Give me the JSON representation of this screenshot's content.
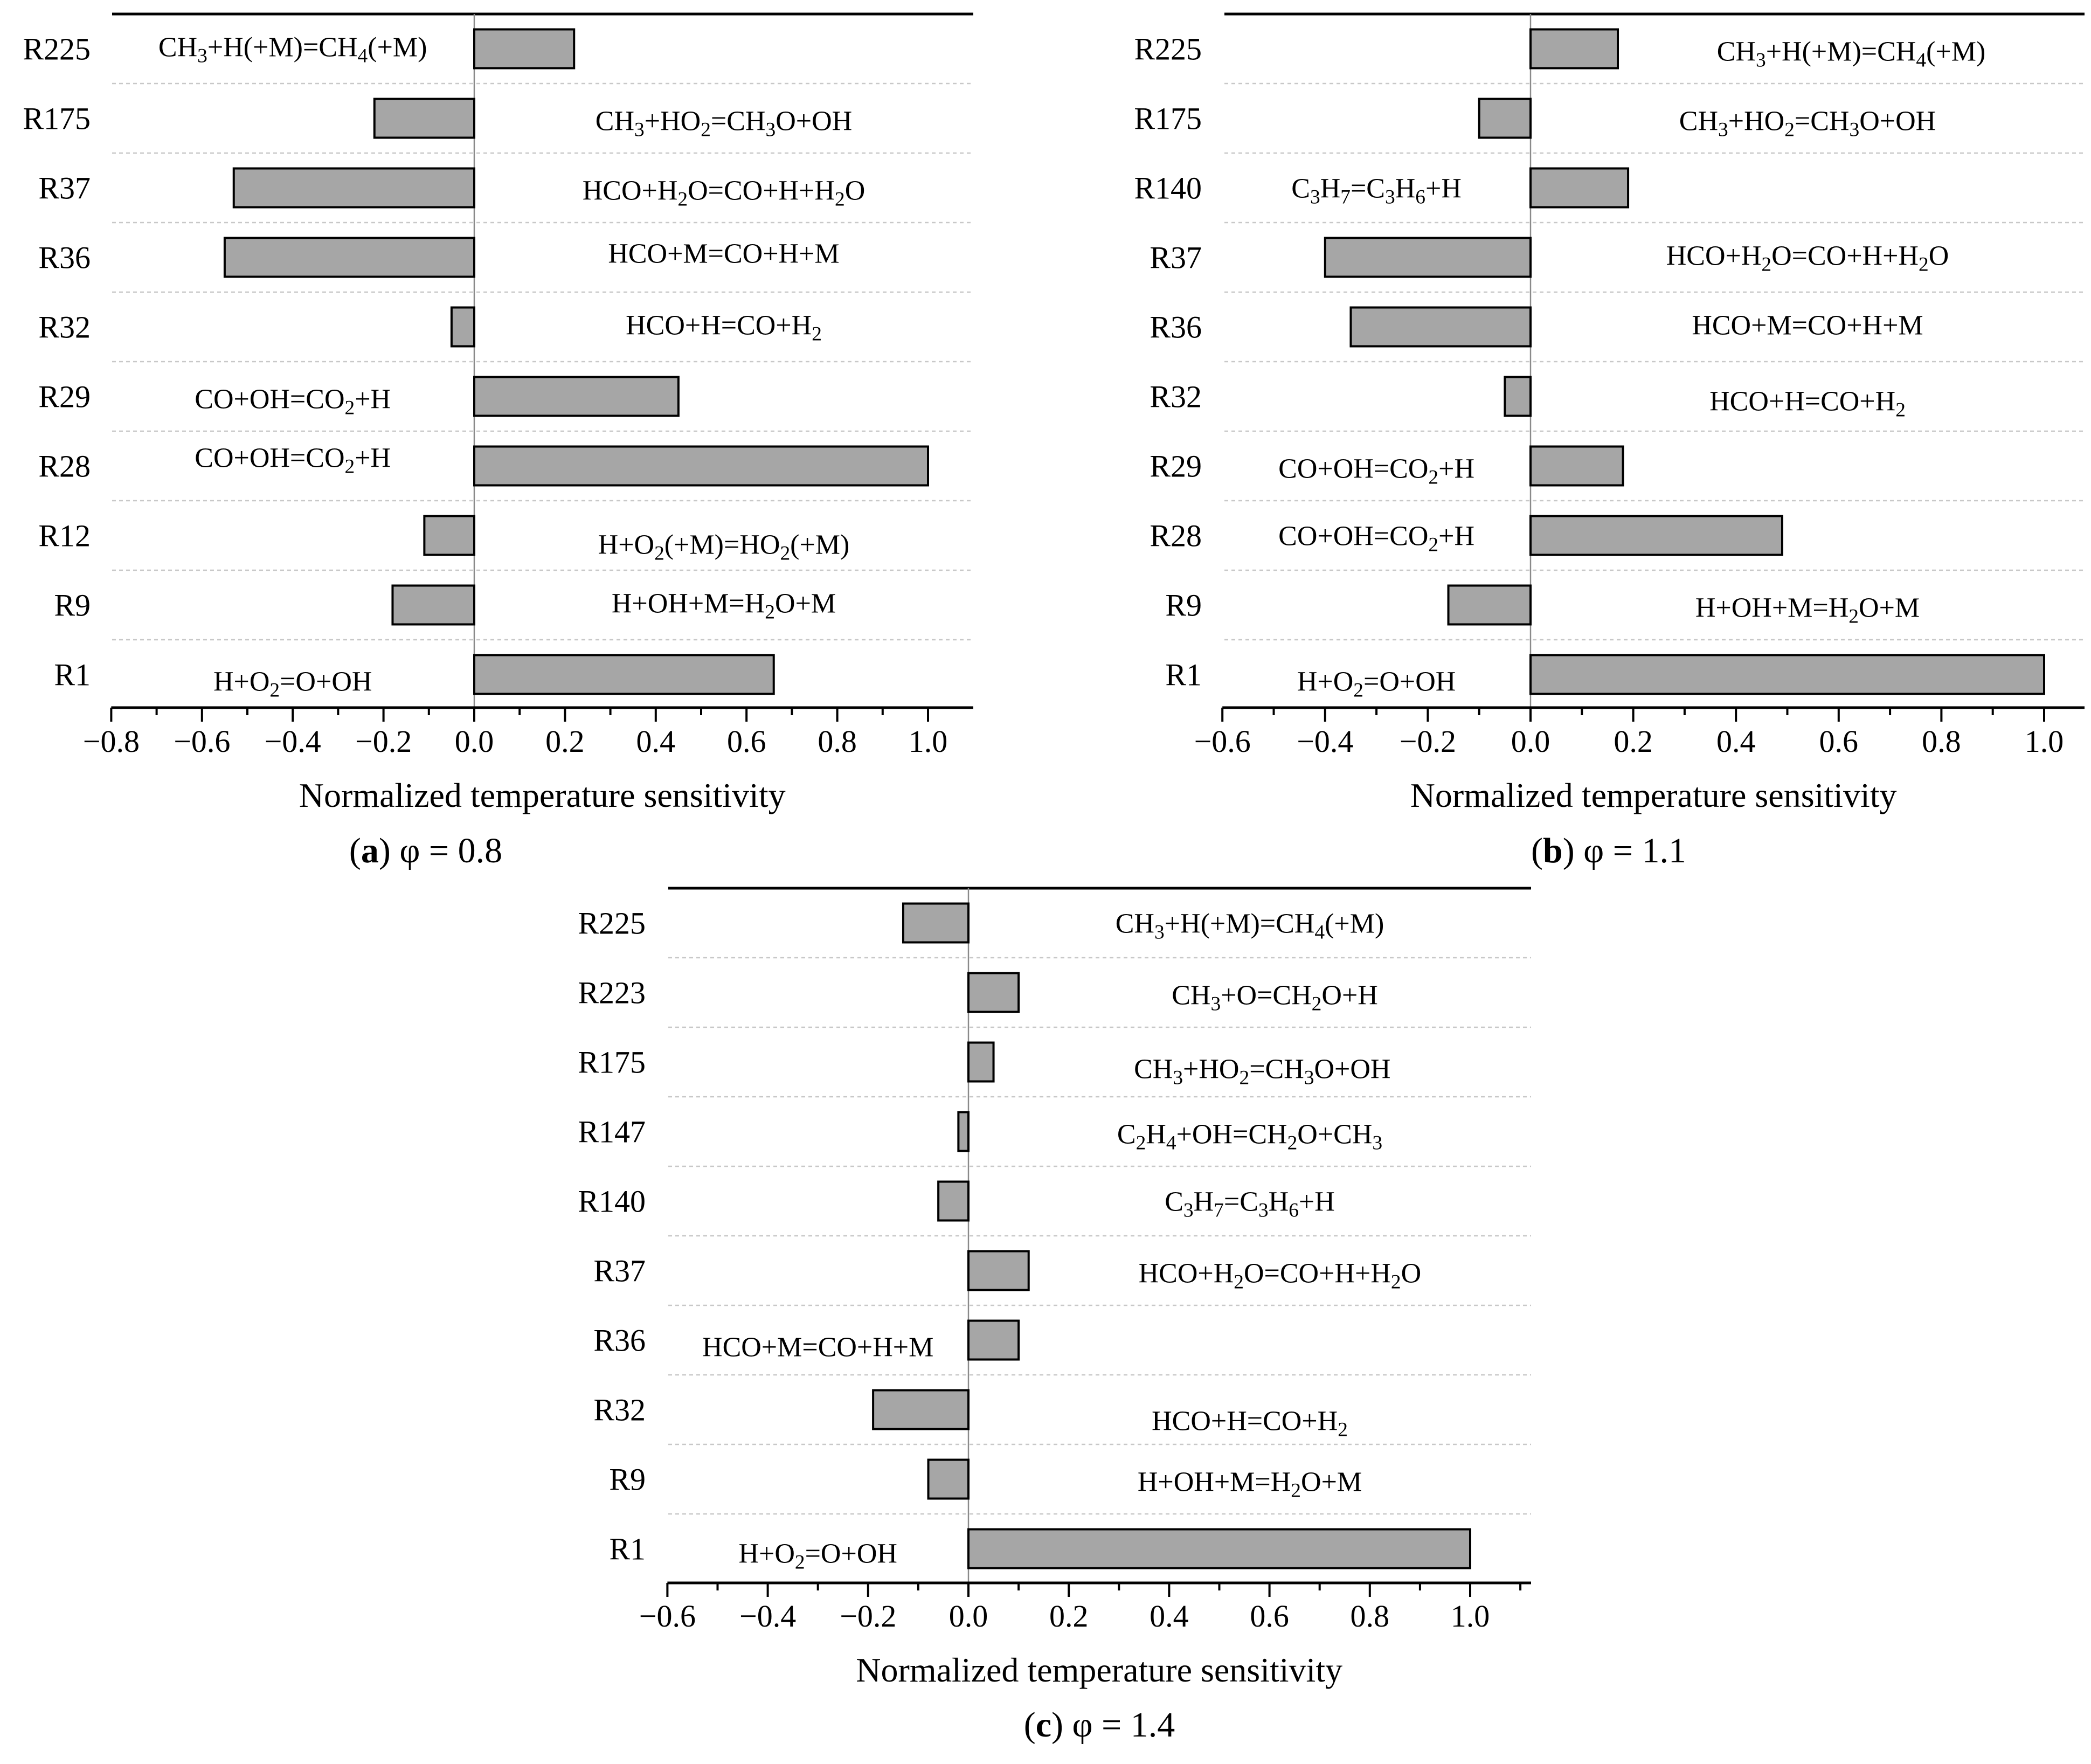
{
  "chart_data": [
    {
      "id": "a",
      "type": "bar",
      "orientation": "horizontal",
      "title": "(a) φ = 0.8",
      "caption_letter": "a",
      "caption_text": "φ = 0.8",
      "xlabel": "Normalized temperature sensitivity",
      "ylabel": "",
      "xlim": [
        -0.8,
        1.1
      ],
      "ticks": [
        -0.8,
        -0.6,
        -0.4,
        -0.2,
        0.0,
        0.2,
        0.4,
        0.6,
        0.8,
        1.0
      ],
      "tick_labels": [
        "−0.8",
        "−0.6",
        "−0.4",
        "−0.2",
        "0.0",
        "0.2",
        "0.4",
        "0.6",
        "0.8",
        "1.0"
      ],
      "categories": [
        "R225",
        "R175",
        "R37",
        "R36",
        "R32",
        "R29",
        "R28",
        "R12",
        "R9",
        "R1"
      ],
      "values": [
        0.22,
        -0.22,
        -0.53,
        -0.55,
        -0.05,
        0.45,
        1.0,
        -0.11,
        -0.18,
        0.66
      ],
      "reactions": [
        {
          "text": "CH<sub>3</sub>+H(+M)=CH<sub>4</sub>(+M)",
          "side": "left",
          "dy": -4
        },
        {
          "text": "CH<sub>3</sub>+HO<sub>2</sub>=CH<sub>3</sub>O+OH",
          "side": "right",
          "dy": 4
        },
        {
          "text": "HCO+H<sub>2</sub>O=CO+H+H<sub>2</sub>O",
          "side": "right",
          "dy": 4
        },
        {
          "text": "HCO+M=CO+H+M",
          "side": "right",
          "dy": -8
        },
        {
          "text": "HCO+H=CO+H<sub>2</sub>",
          "side": "right",
          "dy": -4
        },
        {
          "text": "CO+OH=CO<sub>2</sub>+H",
          "side": "left",
          "dy": 4
        },
        {
          "text": "CO+OH=CO<sub>2</sub>+H",
          "side": "left",
          "dy": -16
        },
        {
          "text": "H+O<sub>2</sub>(+M)=HO<sub>2</sub>(+M)",
          "side": "right",
          "dy": 16
        },
        {
          "text": "H+OH+M=H<sub>2</sub>O+M",
          "side": "right",
          "dy": -4
        },
        {
          "text": "H+O<sub>2</sub>=O+OH",
          "side": "left",
          "dy": 12
        }
      ]
    },
    {
      "id": "b",
      "type": "bar",
      "orientation": "horizontal",
      "title": "(b) φ = 1.1",
      "caption_letter": "b",
      "caption_text": "φ = 1.1",
      "xlabel": "Normalized temperature sensitivity",
      "ylabel": "",
      "xlim": [
        -0.6,
        1.1
      ],
      "ticks": [
        -0.6,
        -0.4,
        -0.2,
        0.0,
        0.2,
        0.4,
        0.6,
        0.8,
        1.0
      ],
      "tick_labels": [
        "−0.6",
        "−0.4",
        "−0.2",
        "0.0",
        "0.2",
        "0.4",
        "0.6",
        "0.8",
        "1.0"
      ],
      "categories": [
        "R225",
        "R175",
        "R140",
        "R37",
        "R36",
        "R32",
        "R29",
        "R28",
        "R9",
        "R1"
      ],
      "values": [
        0.17,
        -0.1,
        0.19,
        -0.4,
        -0.35,
        -0.05,
        0.18,
        0.49,
        -0.16,
        1.0
      ],
      "reactions": [
        {
          "text": "CH<sub>3</sub>+H(+M)=CH<sub>4</sub>(+M)",
          "side": "right",
          "dy": 4
        },
        {
          "text": "CH<sub>3</sub>+HO<sub>2</sub>=CH<sub>3</sub>O+OH",
          "side": "right",
          "dy": 4
        },
        {
          "text": "C<sub>3</sub>H<sub>7</sub>=C<sub>3</sub>H<sub>6</sub>+H",
          "side": "left",
          "dy": 0
        },
        {
          "text": "HCO+H<sub>2</sub>O=CO+H+H<sub>2</sub>O",
          "side": "right",
          "dy": -4
        },
        {
          "text": "HCO+M=CO+H+M",
          "side": "right",
          "dy": -4
        },
        {
          "text": "HCO+H=CO+H<sub>2</sub>",
          "side": "right",
          "dy": 8
        },
        {
          "text": "CO+OH=CO<sub>2</sub>+H",
          "side": "left",
          "dy": 4
        },
        {
          "text": "CO+OH=CO<sub>2</sub>+H",
          "side": "left",
          "dy": 0
        },
        {
          "text": "H+OH+M=H<sub>2</sub>O+M",
          "side": "right",
          "dy": 4
        },
        {
          "text": "H+O<sub>2</sub>=O+OH",
          "side": "left",
          "dy": 12
        }
      ]
    },
    {
      "id": "c",
      "type": "bar",
      "orientation": "horizontal",
      "title": "(c) φ = 1.4",
      "caption_letter": "c",
      "caption_text": "φ = 1.4",
      "xlabel": "Normalized temperature sensitivity",
      "ylabel": "",
      "xlim": [
        -0.6,
        1.12
      ],
      "ticks": [
        -0.6,
        -0.4,
        -0.2,
        0.0,
        0.2,
        0.4,
        0.6,
        0.8,
        1.0
      ],
      "tick_labels": [
        "−0.6",
        "−0.4",
        "−0.2",
        "0.0",
        "0.2",
        "0.4",
        "0.6",
        "0.8",
        "1.0"
      ],
      "categories": [
        "R225",
        "R223",
        "R175",
        "R147",
        "R140",
        "R37",
        "R36",
        "R32",
        "R9",
        "R1"
      ],
      "values": [
        -0.13,
        0.1,
        0.05,
        -0.02,
        -0.06,
        0.12,
        0.1,
        -0.19,
        -0.08,
        1.0
      ],
      "reactions": [
        {
          "text": "CH<sub>3</sub>+H(+M)=CH<sub>4</sub>(+M)",
          "side": "right",
          "dy": 0
        },
        {
          "text": "CH<sub>3</sub>+O=CH<sub>2</sub>O+H",
          "side": "right",
          "dy": 4
        },
        {
          "text": "CH<sub>3</sub>+HO<sub>2</sub>=CH<sub>3</sub>O+OH",
          "side": "right",
          "dy": 12
        },
        {
          "text": "C<sub>2</sub>H<sub>4</sub>+OH=CH<sub>2</sub>O+CH<sub>3</sub>",
          "side": "right",
          "dy": 4
        },
        {
          "text": "C<sub>3</sub>H<sub>7</sub>=C<sub>3</sub>H<sub>6</sub>+H",
          "side": "right",
          "dy": 0
        },
        {
          "text": "HCO+H<sub>2</sub>O=CO+H+H<sub>2</sub>O",
          "side": "right",
          "dy": 4
        },
        {
          "text": "HCO+M=CO+H+M",
          "side": "left",
          "dy": 12
        },
        {
          "text": "HCO+H=CO+H<sub>2</sub>",
          "side": "right",
          "dy": 20
        },
        {
          "text": "H+OH+M=H<sub>2</sub>O+M",
          "side": "right",
          "dy": 4
        },
        {
          "text": "H+O<sub>2</sub>=O+OH",
          "side": "left",
          "dy": 8
        }
      ]
    }
  ]
}
